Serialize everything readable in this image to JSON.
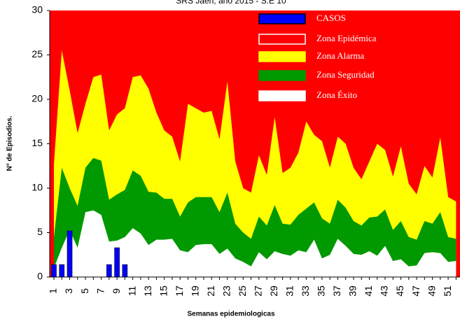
{
  "chart_data": {
    "type": "endemic-channel",
    "title": "SRS Jaén, año 2015 - S.E 10",
    "x_label": "Semanas epidemiologicas",
    "y_label": "N° de Episodios.",
    "categories": [
      1,
      null,
      3,
      null,
      5,
      null,
      7,
      null,
      9,
      null,
      11,
      null,
      13,
      null,
      15,
      null,
      17,
      null,
      19,
      null,
      21,
      null,
      23,
      null,
      25,
      null,
      27,
      null,
      29,
      null,
      31,
      null,
      33,
      null,
      35,
      null,
      37,
      null,
      39,
      null,
      41,
      null,
      43,
      null,
      45,
      null,
      47,
      null,
      49,
      null,
      51,
      null
    ],
    "ylim": [
      0,
      30
    ],
    "yticks": [
      0,
      5,
      10,
      15,
      20,
      25,
      30
    ],
    "series": [
      {
        "name": "CASOS",
        "color": "#0000ff",
        "kind": "bar",
        "values": [
          1.4,
          1.4,
          5.2,
          0,
          0,
          0,
          0,
          1.4,
          3.3,
          1.4,
          null,
          null,
          null,
          null,
          null,
          null,
          null,
          null,
          null,
          null,
          null,
          null,
          null,
          null,
          null,
          null,
          null,
          null,
          null,
          null,
          null,
          null,
          null,
          null,
          null,
          null,
          null,
          null,
          null,
          null,
          null,
          null,
          null,
          null,
          null,
          null,
          null,
          null,
          null,
          null,
          null,
          null
        ]
      },
      {
        "name": "Zona Epidémica",
        "color": "#ff0000",
        "kind": "region"
      },
      {
        "name": "Zona Alarma",
        "color": "#ffff00",
        "kind": "area",
        "values": [
          12.7,
          25.5,
          21,
          16.2,
          19.5,
          22.5,
          22.8,
          16.5,
          18.3,
          19,
          22.5,
          22.7,
          21.2,
          18.5,
          16.5,
          15.8,
          13,
          19.5,
          19,
          18.5,
          18.7,
          15.5,
          22,
          13,
          10,
          9.5,
          13.7,
          11.5,
          18,
          11.7,
          12.3,
          14,
          17.5,
          16,
          15.3,
          12.3,
          15.8,
          15,
          12.3,
          11,
          13,
          15,
          14.3,
          11.3,
          14.7,
          10.5,
          9.3,
          12.5,
          11.2,
          15.7,
          9,
          8.5
        ]
      },
      {
        "name": "Zona Seguridad",
        "color": "#009900",
        "kind": "area",
        "values": [
          4.5,
          12.3,
          10,
          8,
          12.3,
          13.4,
          13.1,
          8.7,
          9.3,
          9.8,
          12,
          11.4,
          9.6,
          9.5,
          8.8,
          8.8,
          6.8,
          8.4,
          9,
          9,
          9,
          7.3,
          9.5,
          6,
          5,
          4.3,
          6.8,
          5.8,
          8.1,
          6,
          5.9,
          7,
          7.7,
          8.4,
          6.6,
          6,
          8.7,
          7.8,
          6.3,
          5.8,
          6.7,
          6.8,
          7.6,
          5.3,
          6.3,
          4.5,
          4.2,
          6.3,
          6,
          7.3,
          4.5,
          4.3
        ]
      },
      {
        "name": "Zona Éxito",
        "color": "#ffffff",
        "kind": "area",
        "values": [
          1,
          3.3,
          5.3,
          3.3,
          7.3,
          7.5,
          7,
          4,
          4.1,
          4.5,
          5.5,
          4.9,
          3.6,
          4.2,
          4.2,
          4.3,
          3,
          2.8,
          3.6,
          3.7,
          3.7,
          2.6,
          3.2,
          2.1,
          1.7,
          1.2,
          2.8,
          2,
          2.9,
          2.6,
          2.4,
          3,
          2.8,
          4.2,
          2.1,
          2.5,
          4.3,
          3.5,
          2.6,
          2.5,
          2.9,
          2.4,
          3.5,
          1.8,
          2,
          1.2,
          1.3,
          2.7,
          2.8,
          2.7,
          1.7,
          1.8
        ]
      }
    ]
  }
}
